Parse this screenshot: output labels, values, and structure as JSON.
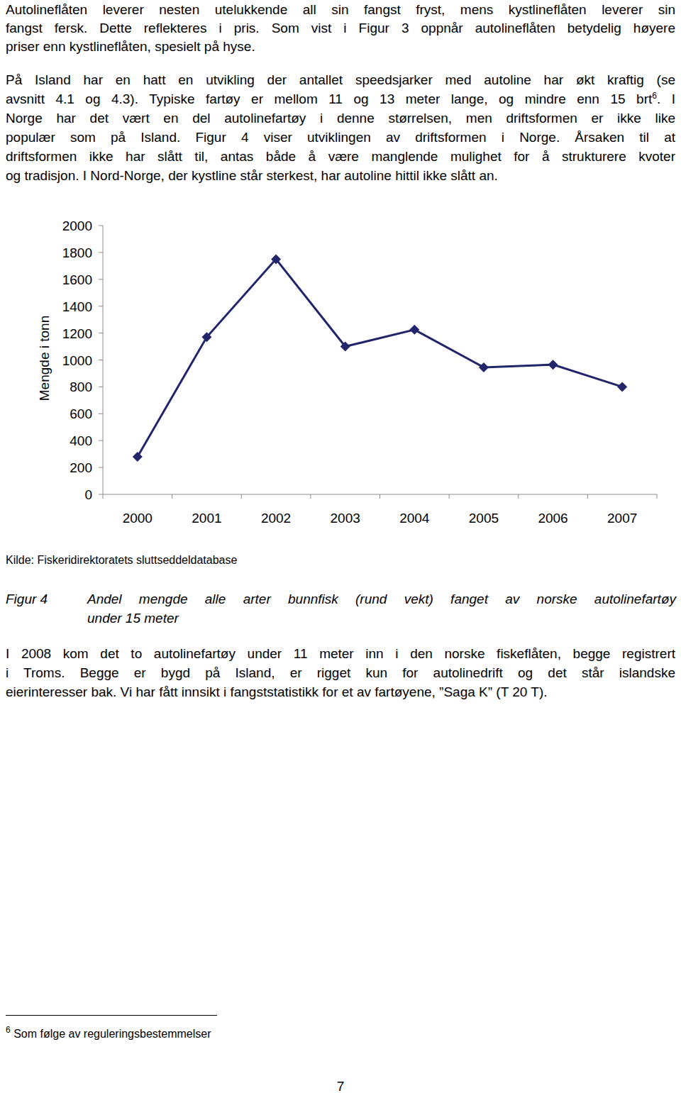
{
  "paragraphs": [
    {
      "lines": [
        "Autolineflåten leverer nesten utelukkende all sin fangst fryst, mens kystlineflåten leverer sin",
        "fangst fersk. Dette reflekteres i pris. Som vist i Figur 3 oppnår autolineflåten betydelig høyere",
        "priser enn kystlineflåten, spesielt på hyse."
      ]
    },
    {
      "lines": [
        "På Island har en hatt en utvikling der antallet speedsjarker med autoline har økt kraftig (se",
        {
          "before": "avsnitt 4.1 og 4.3). Typiske fartøy er mellom 11 og 13 meter lange, og mindre enn 15 brt",
          "sup": "6",
          "after": ". I"
        },
        "Norge har det vært en del autolinefartøy i denne størrelsen, men driftsformen er ikke like",
        "populær som på Island. Figur 4 viser utviklingen av driftsformen i Norge. Årsaken til at",
        "driftsformen ikke har slått til, antas både å være manglende mulighet for å strukturere kvoter",
        "og tradisjon. I Nord-Norge, der kystline står sterkest, har autoline hittil ikke slått an."
      ]
    }
  ],
  "chart_data": {
    "type": "line",
    "ylabel": "Mengde i tonn",
    "categories": [
      "2000",
      "2001",
      "2002",
      "2003",
      "2004",
      "2005",
      "2006",
      "2007"
    ],
    "values": [
      280,
      1170,
      1750,
      1100,
      1225,
      945,
      965,
      800
    ],
    "color": "#23256b",
    "marker": "diamond",
    "line_style": "solid",
    "ylim": [
      0,
      2000
    ],
    "yticks": [
      0,
      200,
      400,
      600,
      800,
      1000,
      1200,
      1400,
      1600,
      1800,
      2000
    ],
    "grid": false
  },
  "source": "Kilde: Fiskeridirektoratets sluttseddeldatabase",
  "figure_caption": {
    "label": "Figur 4",
    "lines": [
      "Andel mengde alle arter bunnfisk (rund vekt) fanget av norske autolinefartøy",
      "under 15 meter"
    ]
  },
  "closing_paragraph": {
    "lines": [
      "I 2008 kom det to autolinefartøy under 11 meter inn i den norske fiskeflåten, begge registrert",
      "i Troms.  Begge er bygd på Island, er rigget kun for autolinedrift og det står islandske",
      "eierinteresser bak. Vi har fått innsikt i fangststatistikk for et av fartøyene, ”Saga K” (T 20 T)."
    ]
  },
  "footnote": {
    "mark": "6",
    "text": "Som følge av reguleringsbestemmelser"
  },
  "page_number": "7"
}
